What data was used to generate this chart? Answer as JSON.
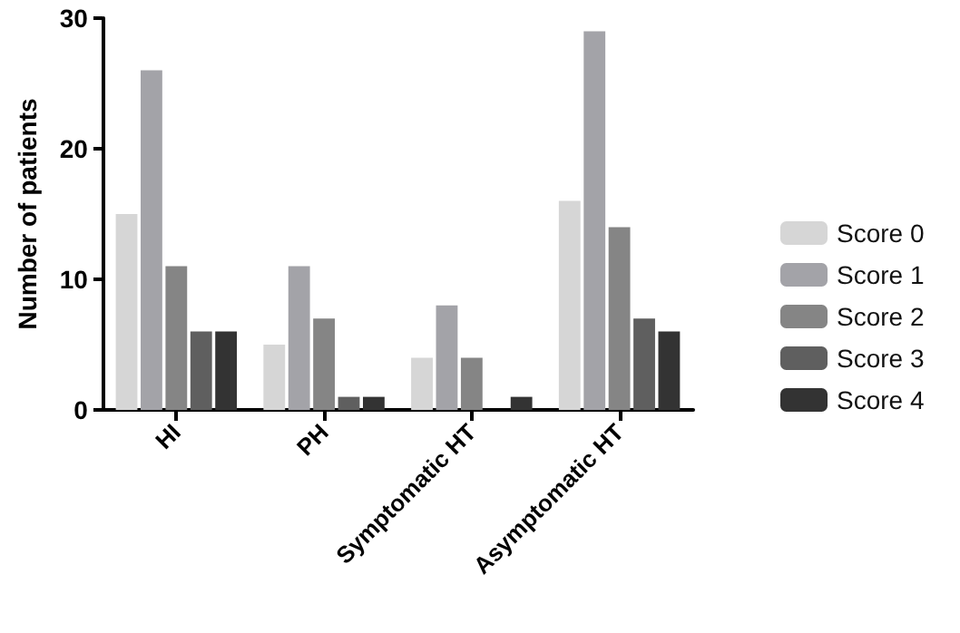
{
  "chart_data": {
    "type": "bar",
    "ylabel": "Number of patients",
    "categories": [
      "HI",
      "PH",
      "Symptomatic HT",
      "Asymptomatic HT"
    ],
    "series": [
      {
        "name": "Score 0",
        "color": "#d6d6d6",
        "values": [
          15,
          5,
          4,
          16
        ]
      },
      {
        "name": "Score 1",
        "color": "#a3a3a8",
        "values": [
          26,
          11,
          8,
          29
        ]
      },
      {
        "name": "Score 2",
        "color": "#858585",
        "values": [
          11,
          7,
          4,
          14
        ]
      },
      {
        "name": "Score 3",
        "color": "#5f5f5f",
        "values": [
          6,
          1,
          0,
          7
        ]
      },
      {
        "name": "Score 4",
        "color": "#333333",
        "values": [
          6,
          1,
          1,
          6
        ]
      }
    ],
    "ylim": [
      0,
      30
    ],
    "yticks": [
      0,
      10,
      20,
      30
    ],
    "grid": false,
    "legend": "right"
  }
}
